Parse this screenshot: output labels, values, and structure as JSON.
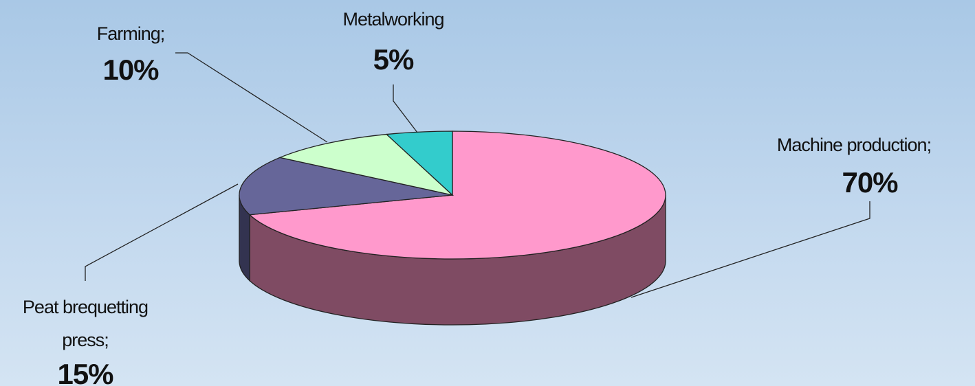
{
  "chart_data": {
    "type": "pie",
    "title": "",
    "slices": [
      {
        "label": "Machine production;",
        "value": 70,
        "value_label": "70%",
        "color": "#ff99cc",
        "side_color": "#7f4b63"
      },
      {
        "label": "Peat brequetting press;",
        "value": 15,
        "value_label": "15%",
        "color": "#666699",
        "side_color": "#333350"
      },
      {
        "label": "Farming;",
        "value": 10,
        "value_label": "10%",
        "color": "#ccffcc",
        "side_color": "#667f66"
      },
      {
        "label": "Metalworking",
        "value": 5,
        "value_label": "5%",
        "color": "#33cccc",
        "side_color": "#196666"
      }
    ],
    "style": "3d-exploded-none"
  }
}
